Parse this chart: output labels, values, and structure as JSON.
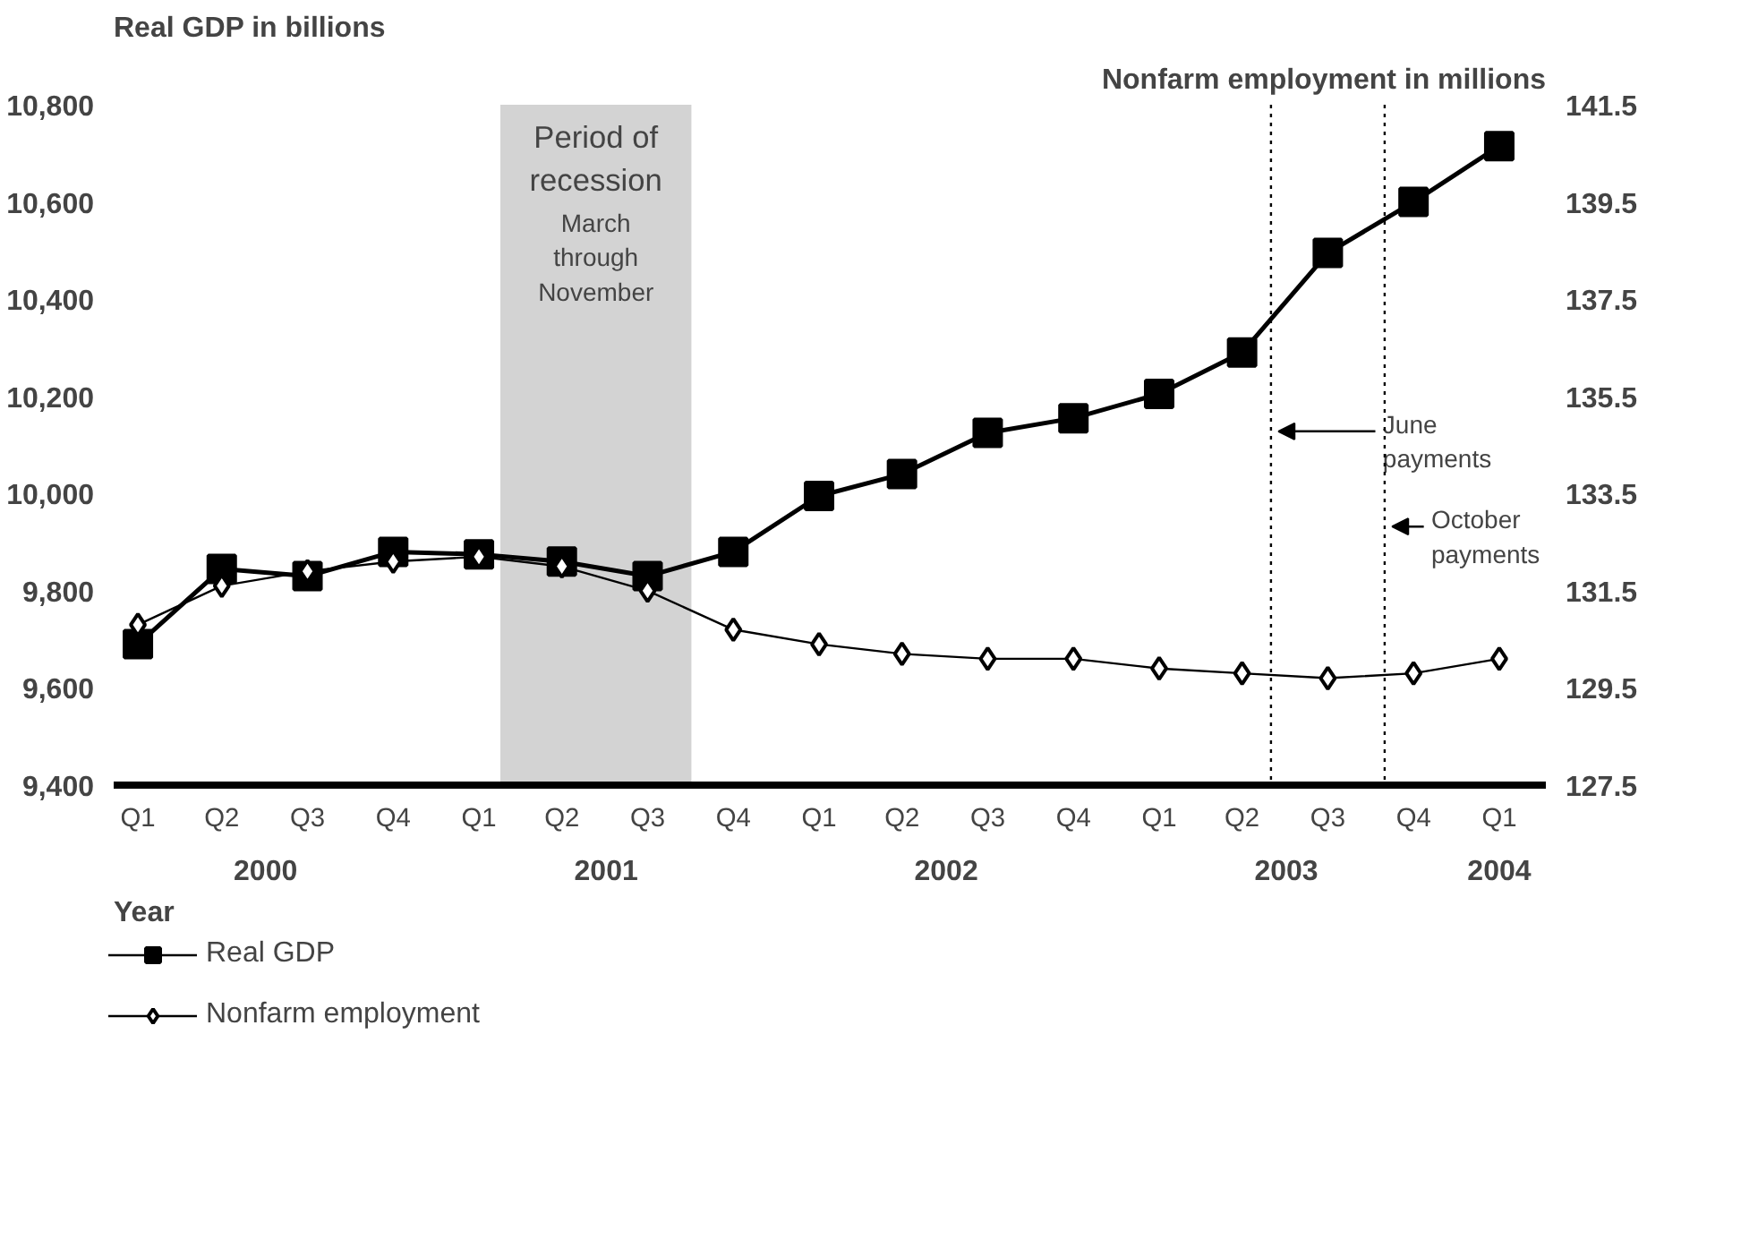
{
  "chart_data": {
    "type": "line",
    "ylabel": "Real GDP in billions",
    "y2label": "Nonfarm employment in millions",
    "xlabel": "Year",
    "x": [
      "2000-02-15",
      "2000-05-15",
      "2000-08-15",
      "2000-11-15",
      "2001-02-15",
      "2001-05-15",
      "2001-08-15",
      "2001-11-15",
      "2002-02-15",
      "2002-05-15",
      "2002-08-15",
      "2002-11-15",
      "2003-02-15",
      "2003-05-15",
      "2003-08-15",
      "2003-11-15",
      "2004-02-15"
    ],
    "xlim": [
      "2000-01-20",
      "2004-04-05"
    ],
    "xticks": [
      {
        "value": "2000-02-15",
        "label": "Q1"
      },
      {
        "value": "2000-05-15",
        "label": "Q2"
      },
      {
        "value": "2000-08-15",
        "label": "Q3"
      },
      {
        "value": "2000-11-15",
        "label": "Q4"
      },
      {
        "value": "2001-02-15",
        "label": "Q1"
      },
      {
        "value": "2001-05-15",
        "label": "Q2"
      },
      {
        "value": "2001-08-15",
        "label": "Q3"
      },
      {
        "value": "2001-11-15",
        "label": "Q4"
      },
      {
        "value": "2002-02-15",
        "label": "Q1"
      },
      {
        "value": "2002-05-15",
        "label": "Q2"
      },
      {
        "value": "2002-08-15",
        "label": "Q3"
      },
      {
        "value": "2002-11-15",
        "label": "Q4"
      },
      {
        "value": "2003-02-15",
        "label": "Q1"
      },
      {
        "value": "2003-05-15",
        "label": "Q2"
      },
      {
        "value": "2003-08-15",
        "label": "Q3"
      },
      {
        "value": "2003-11-15",
        "label": "Q4"
      },
      {
        "value": "2004-02-15",
        "label": "Q1"
      }
    ],
    "ylim": [
      9400,
      10800
    ],
    "yticks": [
      {
        "value": 9400,
        "label": "9,400"
      },
      {
        "value": 9600,
        "label": "9,600"
      },
      {
        "value": 9800,
        "label": "9,800"
      },
      {
        "value": 10000,
        "label": "10,000"
      },
      {
        "value": 10200,
        "label": "10,200"
      },
      {
        "value": 10400,
        "label": "10,400"
      },
      {
        "value": 10600,
        "label": "10,600"
      },
      {
        "value": 10800,
        "label": "10,800"
      }
    ],
    "y2lim": [
      127.5,
      141.5
    ],
    "y2ticks": [
      127.5,
      129.5,
      131.5,
      133.5,
      135.5,
      137.5,
      139.5,
      141.5
    ],
    "series": [
      {
        "name": "Real GDP",
        "color": "#000000",
        "marker": "square",
        "values": [
          9690,
          9845,
          9830,
          9880,
          9875,
          9860,
          9830,
          9880,
          9995,
          10040,
          10125,
          10155,
          10205,
          10290,
          10495,
          10600,
          10715
        ]
      },
      {
        "name": "Nonfarm employment",
        "color": "#000000",
        "marker": "diamond",
        "axis": "y2",
        "values": [
          130.8,
          131.6,
          131.9,
          132.1,
          132.2,
          132.0,
          131.5,
          130.7,
          130.4,
          130.2,
          130.1,
          130.1,
          129.9,
          129.8,
          129.7,
          129.8,
          130.1
        ]
      }
    ],
    "bands": [
      {
        "axis": "x",
        "from": "2001-03-10",
        "to": "2001-10-01",
        "label": "Period of recession",
        "color": "#d3d3d3"
      }
    ],
    "ref_lines": [
      {
        "axis": "x",
        "value": "2003-06-15",
        "label": "June\npayments",
        "line_style": "dotted"
      },
      {
        "axis": "x",
        "value": "2003-10-15",
        "label": "October\npayments",
        "line_style": "dotted"
      }
    ],
    "annotations": [
      "March through November",
      "2000",
      "2001",
      "2002",
      "2003",
      "2004"
    ],
    "grid": false,
    "legend": "bottom"
  }
}
